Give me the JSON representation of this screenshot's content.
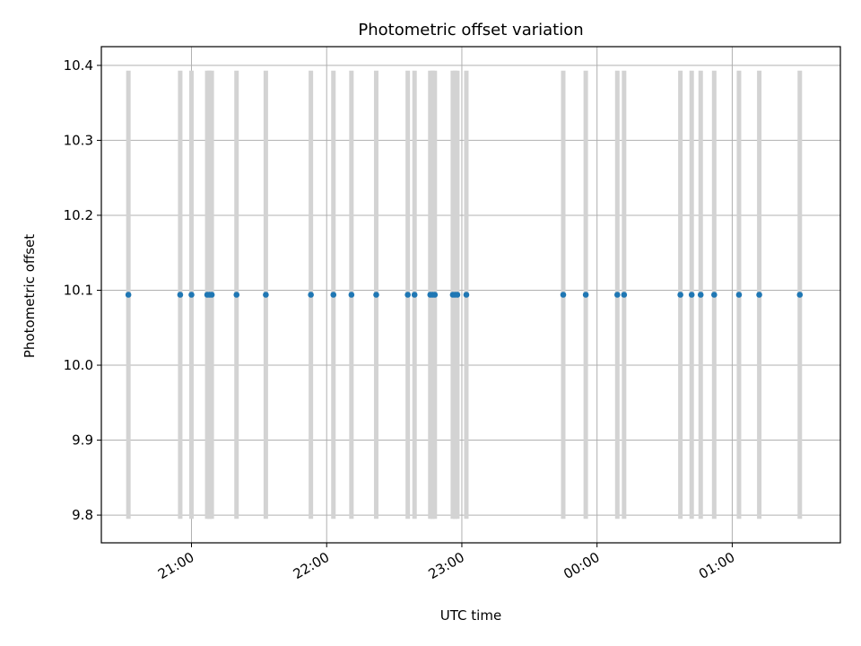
{
  "chart_data": {
    "type": "scatter",
    "title": "Photometric offset variation",
    "xlabel": "UTC time",
    "ylabel": "Photometric offset",
    "x_unit": "UTC",
    "xlim": [
      "20:20",
      "01:48"
    ],
    "ylim": [
      9.763,
      10.425
    ],
    "grid": true,
    "x_tick_labels": [
      "21:00",
      "22:00",
      "23:00",
      "00:00",
      "01:00"
    ],
    "x_ticks": [
      "21:00",
      "22:00",
      "23:00",
      "00:00",
      "01:00"
    ],
    "y_ticks": [
      9.8,
      9.9,
      10.0,
      10.1,
      10.2,
      10.3,
      10.4
    ],
    "y_tick_labels": [
      "9.8",
      "9.9",
      "10.0",
      "10.1",
      "10.2",
      "10.3",
      "10.4"
    ],
    "errorbar_range": [
      9.795,
      10.393
    ],
    "series": [
      {
        "times": [
          "20:32",
          "20:55",
          "21:00",
          "21:07",
          "21:08",
          "21:09",
          "21:20",
          "21:33",
          "21:53",
          "22:03",
          "22:11",
          "22:22",
          "22:36",
          "22:39",
          "22:46",
          "22:47",
          "22:48",
          "22:56",
          "22:57",
          "22:58",
          "23:02",
          "23:45",
          "23:55",
          "00:09",
          "00:12",
          "00:37",
          "00:42",
          "00:46",
          "00:52",
          "01:03",
          "01:12",
          "01:30"
        ],
        "values": [
          10.094,
          10.094,
          10.094,
          10.094,
          10.094,
          10.094,
          10.094,
          10.094,
          10.094,
          10.094,
          10.094,
          10.094,
          10.094,
          10.094,
          10.094,
          10.094,
          10.094,
          10.094,
          10.094,
          10.094,
          10.094,
          10.094,
          10.094,
          10.094,
          10.094,
          10.094,
          10.094,
          10.094,
          10.094,
          10.094,
          10.094,
          10.094
        ]
      }
    ],
    "colors": {
      "points": "#1f77b4",
      "errorbars": "#d3d3d3",
      "grid": "#b0b0b0",
      "axes": "#000000"
    }
  }
}
